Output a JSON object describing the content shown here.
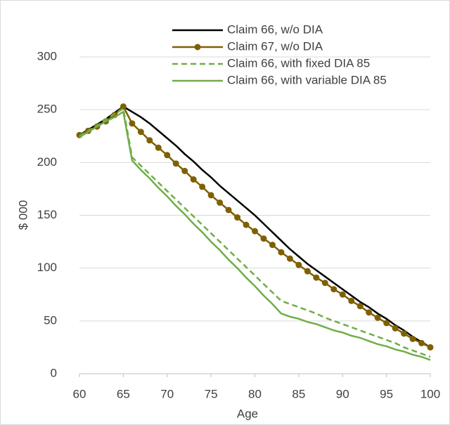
{
  "chart_data": {
    "type": "line",
    "x_label": "Age",
    "y_label": "$ 000",
    "x": [
      60,
      61,
      62,
      63,
      64,
      65,
      66,
      67,
      68,
      69,
      70,
      71,
      72,
      73,
      74,
      75,
      76,
      77,
      78,
      79,
      80,
      81,
      82,
      83,
      84,
      85,
      86,
      87,
      88,
      89,
      90,
      91,
      92,
      93,
      94,
      95,
      96,
      97,
      98,
      99,
      100
    ],
    "xlim": [
      60,
      100
    ],
    "xticks": [
      60,
      65,
      70,
      75,
      80,
      85,
      90,
      95,
      100
    ],
    "ylim": [
      0,
      300
    ],
    "yticks": [
      0,
      50,
      100,
      150,
      200,
      250,
      300
    ],
    "grid": true,
    "legend": "top-right",
    "series": [
      {
        "name": "Claim 66, w/o DIA",
        "color": "#000000",
        "style": "solid",
        "marker": false,
        "values": [
          226,
          231,
          236,
          241,
          247,
          253,
          248,
          243,
          237,
          230,
          223,
          216,
          208,
          201,
          193,
          186,
          178,
          171,
          164,
          157,
          150,
          142,
          134,
          126,
          118,
          111,
          104,
          98,
          92,
          86,
          80,
          74,
          68,
          63,
          57,
          52,
          46,
          41,
          35,
          30,
          25
        ]
      },
      {
        "name": "Claim 67, w/o DIA",
        "color": "#7f6000",
        "style": "solid",
        "marker": true,
        "values": [
          226,
          230,
          234,
          239,
          245,
          253,
          237,
          229,
          221,
          214,
          207,
          199,
          192,
          184,
          177,
          169,
          162,
          155,
          148,
          141,
          135,
          128,
          122,
          115,
          109,
          103,
          97,
          91,
          86,
          80,
          75,
          69,
          64,
          58,
          53,
          48,
          43,
          38,
          33,
          29,
          25
        ]
      },
      {
        "name": "Claim 66, with fixed DIA 85",
        "color": "#70ad47",
        "style": "dashed",
        "marker": false,
        "values": [
          225,
          230,
          235,
          241,
          246,
          251,
          205,
          197,
          189,
          181,
          173,
          165,
          157,
          149,
          141,
          133,
          125,
          117,
          109,
          101,
          93,
          85,
          77,
          69,
          66,
          63,
          60,
          57,
          53,
          50,
          47,
          44,
          41,
          38,
          35,
          32,
          29,
          25,
          22,
          19,
          16
        ]
      },
      {
        "name": "Claim 66, with variable DIA 85",
        "color": "#70ad47",
        "style": "solid",
        "marker": false,
        "values": [
          224,
          229,
          234,
          239,
          243,
          248,
          202,
          193,
          185,
          176,
          168,
          159,
          151,
          142,
          134,
          125,
          117,
          108,
          100,
          91,
          83,
          74,
          66,
          57,
          54,
          52,
          49,
          47,
          44,
          41,
          39,
          36,
          34,
          31,
          28,
          26,
          23,
          21,
          18,
          16,
          13
        ]
      }
    ]
  }
}
